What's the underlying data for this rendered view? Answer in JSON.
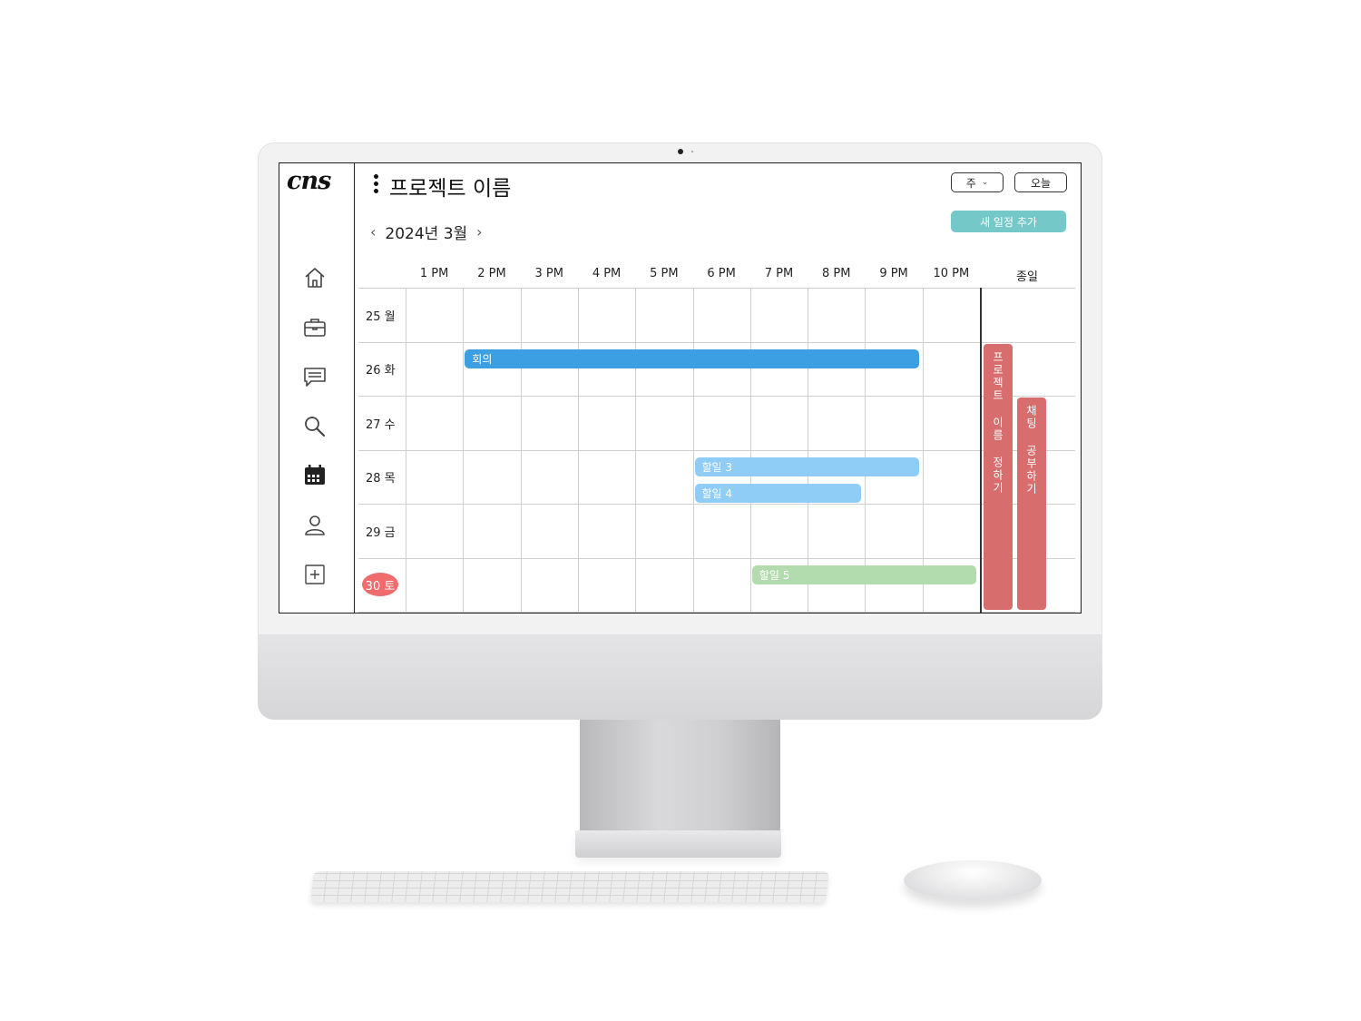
{
  "app": {
    "logo_text": "cns",
    "project_title": "프로젝트 이름"
  },
  "sidebar": {
    "items": [
      {
        "name": "home",
        "icon": "home-icon"
      },
      {
        "name": "projects",
        "icon": "briefcase-icon"
      },
      {
        "name": "chat",
        "icon": "chat-icon"
      },
      {
        "name": "search",
        "icon": "search-icon"
      },
      {
        "name": "calendar",
        "icon": "calendar-icon",
        "active": true
      },
      {
        "name": "profile",
        "icon": "user-icon"
      },
      {
        "name": "add",
        "icon": "plus-square-icon"
      }
    ]
  },
  "toolbar": {
    "view_select": "주",
    "today_label": "오늘",
    "add_event_label": "새 일정 추가",
    "month_label": "2024년 3월",
    "prev_label": "‹",
    "next_label": "›"
  },
  "calendar": {
    "hours": [
      "1 PM",
      "2 PM",
      "3 PM",
      "4 PM",
      "5 PM",
      "6 PM",
      "7 PM",
      "8 PM",
      "9 PM",
      "10 PM"
    ],
    "allday_label": "종일",
    "days": [
      {
        "label": "25 월",
        "today": false
      },
      {
        "label": "26 화",
        "today": false
      },
      {
        "label": "27 수",
        "today": false
      },
      {
        "label": "28 목",
        "today": false
      },
      {
        "label": "29 금",
        "today": false
      },
      {
        "label": "30 토",
        "today": true
      }
    ],
    "events": [
      {
        "title": "회의",
        "day": 1,
        "start": "2 PM",
        "end": "10 PM",
        "color": "#3d9fe3"
      },
      {
        "title": "할일 3",
        "day": 3,
        "start": "6 PM",
        "end": "10 PM",
        "color": "#8fcdf7"
      },
      {
        "title": "할일 4",
        "day": 3,
        "start": "6 PM",
        "end": "9 PM",
        "color": "#8fcdf7"
      },
      {
        "title": "할일 5",
        "day": 5,
        "start": "7 PM",
        "end": "11 PM",
        "color": "#b3dcae"
      }
    ],
    "allday_events": [
      {
        "title": "프로젝트 이름 정하기",
        "start_day": 1,
        "end_day": 5,
        "color": "#d76d6d"
      },
      {
        "title": "채팅 공부하기",
        "start_day": 2,
        "end_day": 5,
        "color": "#d76d6d"
      }
    ]
  }
}
